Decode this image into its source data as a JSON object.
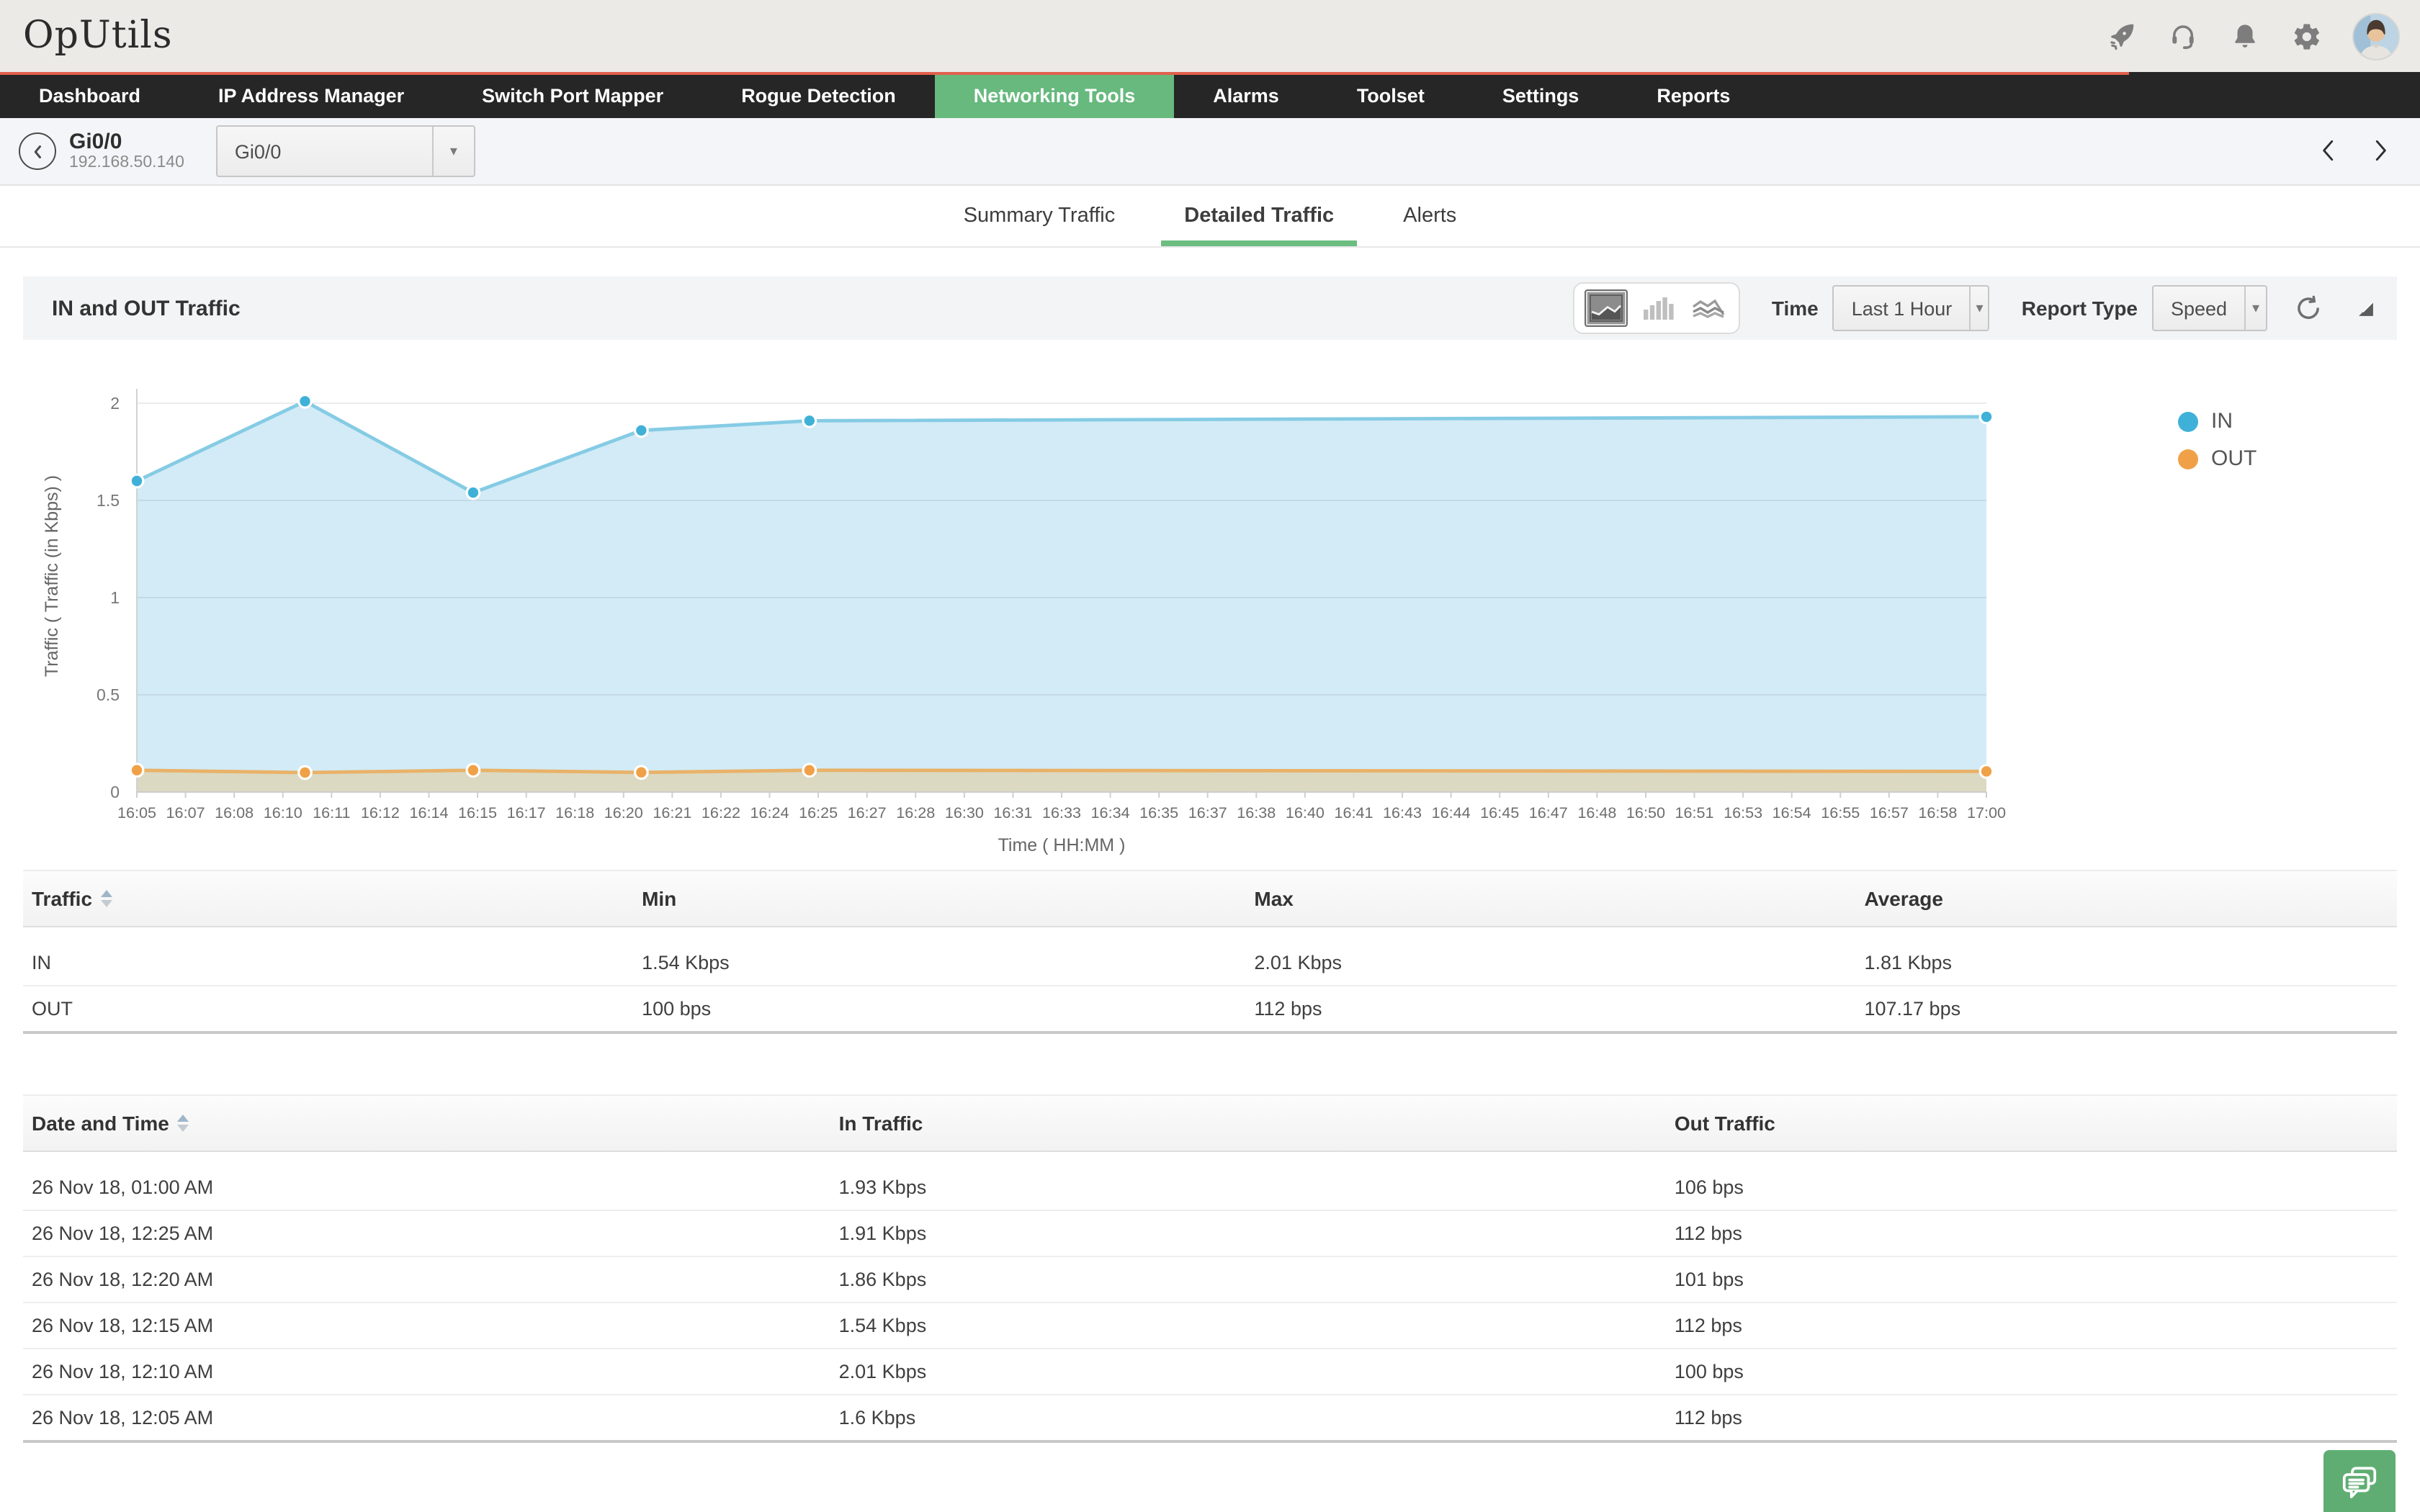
{
  "header": {
    "logo_text": "OpUtils",
    "icons": [
      "rocket-icon",
      "headset-icon",
      "bell-icon",
      "gear-icon",
      "user-avatar"
    ],
    "progress_percent": 88
  },
  "nav": {
    "items": [
      {
        "label": "Dashboard",
        "active": false
      },
      {
        "label": "IP Address Manager",
        "active": false
      },
      {
        "label": "Switch Port Mapper",
        "active": false
      },
      {
        "label": "Rogue Detection",
        "active": false
      },
      {
        "label": "Networking Tools",
        "active": true
      },
      {
        "label": "Alarms",
        "active": false
      },
      {
        "label": "Toolset",
        "active": false
      },
      {
        "label": "Settings",
        "active": false
      },
      {
        "label": "Reports",
        "active": false
      }
    ],
    "active_color": "#67b97e"
  },
  "breadcrumb": {
    "title": "Gi0/0",
    "subtitle": "192.168.50.140",
    "interface_select_value": "Gi0/0"
  },
  "tabs": [
    {
      "label": "Summary Traffic",
      "active": false
    },
    {
      "label": "Detailed Traffic",
      "active": true
    },
    {
      "label": "Alerts",
      "active": false
    }
  ],
  "panel": {
    "title": "IN and OUT Traffic",
    "chart_type_icons": [
      "area-chart-icon",
      "bar-chart-icon",
      "line-chart-icon"
    ],
    "selected_chart_type": "area",
    "time_label": "Time",
    "time_value": "Last 1 Hour",
    "report_type_label": "Report Type",
    "report_type_value": "Speed"
  },
  "chart_data": {
    "type": "area",
    "title": "IN and OUT Traffic",
    "xlabel": "Time ( HH:MM )",
    "ylabel": "Traffic ( Traffic (in Kbps) )",
    "ylim": [
      0,
      2.1
    ],
    "yticks": [
      0,
      0.5,
      1,
      1.5,
      2
    ],
    "x_ticklabels": [
      "16:05",
      "16:07",
      "16:08",
      "16:10",
      "16:11",
      "16:12",
      "16:14",
      "16:15",
      "16:17",
      "16:18",
      "16:20",
      "16:21",
      "16:22",
      "16:24",
      "16:25",
      "16:27",
      "16:28",
      "16:30",
      "16:31",
      "16:33",
      "16:34",
      "16:35",
      "16:37",
      "16:38",
      "16:40",
      "16:41",
      "16:43",
      "16:44",
      "16:45",
      "16:47",
      "16:48",
      "16:50",
      "16:51",
      "16:53",
      "16:54",
      "16:55",
      "16:57",
      "16:58",
      "17:00"
    ],
    "grid": true,
    "legend_position": "right",
    "series": [
      {
        "name": "IN",
        "color": "#3fb1d8",
        "line_color": "#85cbe4",
        "fill": "#d2ebf6",
        "x": [
          "16:05",
          "16:10",
          "16:15",
          "16:20",
          "16:25",
          "17:00"
        ],
        "x_minutes": [
          0,
          5,
          10,
          15,
          20,
          55
        ],
        "values": [
          1.6,
          2.01,
          1.54,
          1.86,
          1.91,
          1.93
        ]
      },
      {
        "name": "OUT",
        "color": "#f0a148",
        "line_color": "#e9b269",
        "fill": "#dbd9c2",
        "x": [
          "16:05",
          "16:10",
          "16:15",
          "16:20",
          "16:25",
          "17:00"
        ],
        "x_minutes": [
          0,
          5,
          10,
          15,
          20,
          55
        ],
        "values": [
          0.112,
          0.1,
          0.112,
          0.101,
          0.112,
          0.106
        ]
      }
    ]
  },
  "summary_table": {
    "columns": [
      "Traffic",
      "Min",
      "Max",
      "Average"
    ],
    "rows": [
      [
        "IN",
        "1.54 Kbps",
        "2.01 Kbps",
        "1.81 Kbps"
      ],
      [
        "OUT",
        "100 bps",
        "112 bps",
        "107.17 bps"
      ]
    ]
  },
  "detail_table": {
    "columns": [
      "Date and Time",
      "In Traffic",
      "Out Traffic"
    ],
    "rows": [
      [
        "26 Nov 18, 01:00 AM",
        "1.93 Kbps",
        "106 bps"
      ],
      [
        "26 Nov 18, 12:25 AM",
        "1.91 Kbps",
        "112 bps"
      ],
      [
        "26 Nov 18, 12:20 AM",
        "1.86 Kbps",
        "101 bps"
      ],
      [
        "26 Nov 18, 12:15 AM",
        "1.54 Kbps",
        "112 bps"
      ],
      [
        "26 Nov 18, 12:10 AM",
        "2.01 Kbps",
        "100 bps"
      ],
      [
        "26 Nov 18, 12:05 AM",
        "1.6 Kbps",
        "112 bps"
      ]
    ]
  },
  "colors": {
    "nav_bg": "#262626",
    "accent_green": "#67b97e",
    "progress_red": "#e2604d",
    "in_blue": "#3fb1d8",
    "out_orange": "#f0a148",
    "chat_green": "#5fad72"
  }
}
